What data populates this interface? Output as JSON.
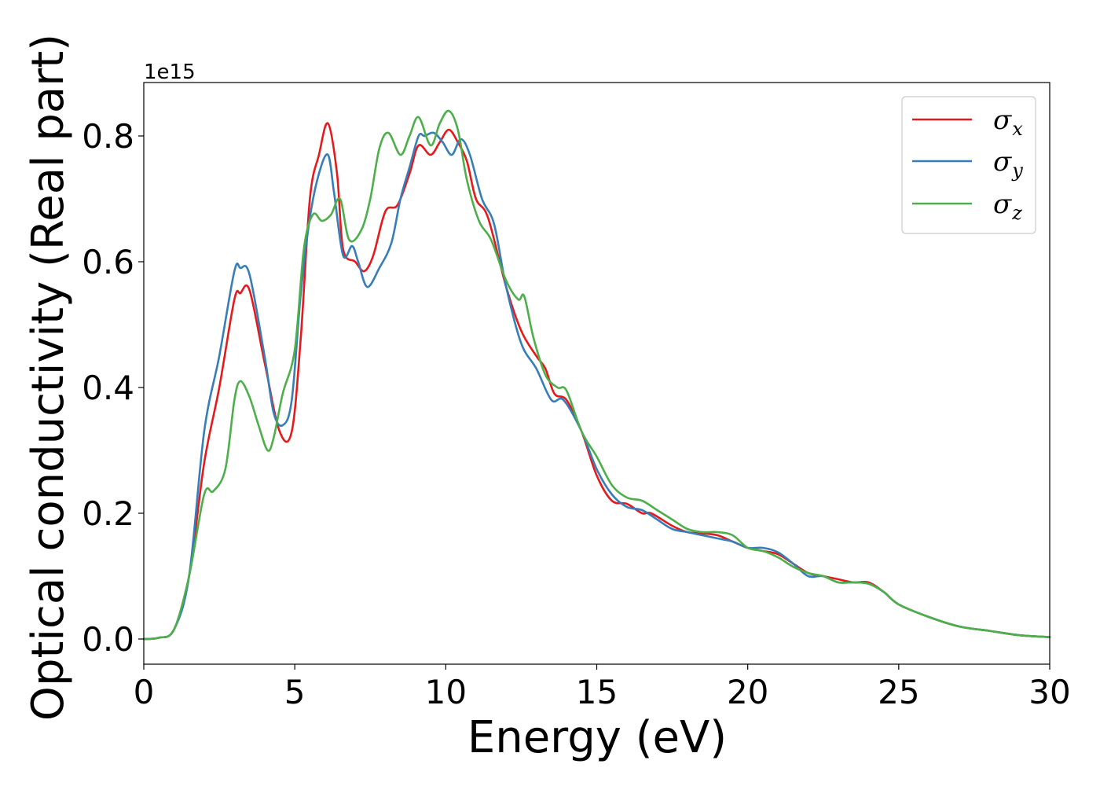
{
  "chart_data": {
    "type": "line",
    "xlabel": "Energy (eV)",
    "ylabel": "Optical conductivity (Real part)",
    "y_offset_label": "1e15",
    "xlim": [
      0,
      30
    ],
    "ylim": [
      -0.04,
      0.885
    ],
    "xticks": [
      0,
      5,
      10,
      15,
      20,
      25,
      30
    ],
    "xtick_labels": [
      "0",
      "5",
      "10",
      "15",
      "20",
      "25",
      "30"
    ],
    "yticks": [
      0.0,
      0.2,
      0.4,
      0.6,
      0.8
    ],
    "ytick_labels": [
      "0.0",
      "0.2",
      "0.4",
      "0.6",
      "0.8"
    ],
    "grid": false,
    "legend_position": "top-right",
    "series": [
      {
        "name": "σx",
        "symbol": "σ",
        "sub": "x",
        "color": "#e41a1c",
        "points": [
          [
            0,
            0
          ],
          [
            0.5,
            0.002
          ],
          [
            1.0,
            0.015
          ],
          [
            1.5,
            0.1
          ],
          [
            2.0,
            0.28
          ],
          [
            2.5,
            0.4
          ],
          [
            3.0,
            0.54
          ],
          [
            3.2,
            0.55
          ],
          [
            3.5,
            0.555
          ],
          [
            4.0,
            0.44
          ],
          [
            4.5,
            0.33
          ],
          [
            4.9,
            0.33
          ],
          [
            5.2,
            0.48
          ],
          [
            5.5,
            0.7
          ],
          [
            5.8,
            0.77
          ],
          [
            6.1,
            0.82
          ],
          [
            6.4,
            0.74
          ],
          [
            6.6,
            0.62
          ],
          [
            7.0,
            0.6
          ],
          [
            7.3,
            0.585
          ],
          [
            7.6,
            0.61
          ],
          [
            8.0,
            0.68
          ],
          [
            8.4,
            0.69
          ],
          [
            8.8,
            0.74
          ],
          [
            9.1,
            0.785
          ],
          [
            9.5,
            0.77
          ],
          [
            9.8,
            0.79
          ],
          [
            10.1,
            0.81
          ],
          [
            10.4,
            0.79
          ],
          [
            10.7,
            0.76
          ],
          [
            11.0,
            0.7
          ],
          [
            11.4,
            0.67
          ],
          [
            12.0,
            0.56
          ],
          [
            12.5,
            0.49
          ],
          [
            13.0,
            0.45
          ],
          [
            13.3,
            0.43
          ],
          [
            13.6,
            0.39
          ],
          [
            14.0,
            0.38
          ],
          [
            14.5,
            0.33
          ],
          [
            15.0,
            0.26
          ],
          [
            15.5,
            0.22
          ],
          [
            16.0,
            0.215
          ],
          [
            16.5,
            0.2
          ],
          [
            16.8,
            0.2
          ],
          [
            17.5,
            0.18
          ],
          [
            18.0,
            0.17
          ],
          [
            18.5,
            0.168
          ],
          [
            19.0,
            0.165
          ],
          [
            19.5,
            0.155
          ],
          [
            20.0,
            0.145
          ],
          [
            20.5,
            0.14
          ],
          [
            21.0,
            0.135
          ],
          [
            21.5,
            0.12
          ],
          [
            22.0,
            0.105
          ],
          [
            22.5,
            0.1
          ],
          [
            23.0,
            0.095
          ],
          [
            23.5,
            0.09
          ],
          [
            24.0,
            0.09
          ],
          [
            24.5,
            0.075
          ],
          [
            25.0,
            0.055
          ],
          [
            26.0,
            0.035
          ],
          [
            27.0,
            0.02
          ],
          [
            28.0,
            0.013
          ],
          [
            29.0,
            0.006
          ],
          [
            30.0,
            0.003
          ]
        ]
      },
      {
        "name": "σy",
        "symbol": "σ",
        "sub": "y",
        "color": "#377eb8",
        "points": [
          [
            0,
            0
          ],
          [
            0.5,
            0.002
          ],
          [
            1.0,
            0.015
          ],
          [
            1.5,
            0.1
          ],
          [
            2.0,
            0.33
          ],
          [
            2.5,
            0.45
          ],
          [
            3.0,
            0.585
          ],
          [
            3.2,
            0.59
          ],
          [
            3.5,
            0.58
          ],
          [
            4.0,
            0.45
          ],
          [
            4.3,
            0.36
          ],
          [
            4.6,
            0.34
          ],
          [
            4.9,
            0.38
          ],
          [
            5.2,
            0.55
          ],
          [
            5.5,
            0.67
          ],
          [
            5.8,
            0.74
          ],
          [
            6.1,
            0.77
          ],
          [
            6.3,
            0.71
          ],
          [
            6.6,
            0.61
          ],
          [
            6.9,
            0.625
          ],
          [
            7.1,
            0.6
          ],
          [
            7.4,
            0.56
          ],
          [
            7.8,
            0.59
          ],
          [
            8.2,
            0.63
          ],
          [
            8.5,
            0.7
          ],
          [
            8.8,
            0.75
          ],
          [
            9.1,
            0.8
          ],
          [
            9.3,
            0.8
          ],
          [
            9.6,
            0.805
          ],
          [
            9.9,
            0.79
          ],
          [
            10.2,
            0.77
          ],
          [
            10.5,
            0.795
          ],
          [
            10.8,
            0.77
          ],
          [
            11.2,
            0.7
          ],
          [
            11.6,
            0.66
          ],
          [
            12.0,
            0.56
          ],
          [
            12.5,
            0.47
          ],
          [
            13.0,
            0.43
          ],
          [
            13.5,
            0.38
          ],
          [
            13.9,
            0.38
          ],
          [
            14.5,
            0.33
          ],
          [
            15.0,
            0.27
          ],
          [
            15.5,
            0.23
          ],
          [
            16.0,
            0.21
          ],
          [
            16.5,
            0.205
          ],
          [
            17.0,
            0.19
          ],
          [
            17.5,
            0.175
          ],
          [
            18.0,
            0.17
          ],
          [
            18.5,
            0.165
          ],
          [
            19.0,
            0.16
          ],
          [
            19.5,
            0.155
          ],
          [
            20.0,
            0.145
          ],
          [
            20.5,
            0.145
          ],
          [
            21.0,
            0.138
          ],
          [
            21.5,
            0.12
          ],
          [
            22.0,
            0.1
          ],
          [
            22.5,
            0.1
          ],
          [
            23.0,
            0.09
          ],
          [
            23.5,
            0.09
          ],
          [
            24.0,
            0.088
          ],
          [
            24.5,
            0.075
          ],
          [
            25.0,
            0.055
          ],
          [
            26.0,
            0.035
          ],
          [
            27.0,
            0.02
          ],
          [
            28.0,
            0.013
          ],
          [
            29.0,
            0.006
          ],
          [
            30.0,
            0.003
          ]
        ]
      },
      {
        "name": "σz",
        "symbol": "σ",
        "sub": "z",
        "color": "#4daf4a",
        "points": [
          [
            0,
            0
          ],
          [
            0.5,
            0.002
          ],
          [
            1.0,
            0.015
          ],
          [
            1.5,
            0.1
          ],
          [
            2.0,
            0.23
          ],
          [
            2.3,
            0.235
          ],
          [
            2.7,
            0.27
          ],
          [
            3.0,
            0.38
          ],
          [
            3.2,
            0.41
          ],
          [
            3.5,
            0.385
          ],
          [
            3.8,
            0.34
          ],
          [
            4.1,
            0.3
          ],
          [
            4.3,
            0.32
          ],
          [
            4.6,
            0.39
          ],
          [
            5.0,
            0.46
          ],
          [
            5.3,
            0.62
          ],
          [
            5.6,
            0.675
          ],
          [
            5.9,
            0.665
          ],
          [
            6.2,
            0.675
          ],
          [
            6.5,
            0.7
          ],
          [
            6.8,
            0.635
          ],
          [
            7.2,
            0.65
          ],
          [
            7.5,
            0.7
          ],
          [
            7.8,
            0.78
          ],
          [
            8.1,
            0.805
          ],
          [
            8.5,
            0.77
          ],
          [
            8.8,
            0.8
          ],
          [
            9.1,
            0.83
          ],
          [
            9.5,
            0.785
          ],
          [
            9.8,
            0.82
          ],
          [
            10.1,
            0.84
          ],
          [
            10.4,
            0.81
          ],
          [
            10.7,
            0.73
          ],
          [
            11.1,
            0.665
          ],
          [
            11.5,
            0.635
          ],
          [
            12.0,
            0.57
          ],
          [
            12.4,
            0.54
          ],
          [
            12.6,
            0.545
          ],
          [
            12.9,
            0.48
          ],
          [
            13.3,
            0.42
          ],
          [
            13.7,
            0.4
          ],
          [
            14.0,
            0.395
          ],
          [
            14.5,
            0.33
          ],
          [
            15.0,
            0.29
          ],
          [
            15.5,
            0.245
          ],
          [
            16.0,
            0.225
          ],
          [
            16.5,
            0.22
          ],
          [
            17.0,
            0.205
          ],
          [
            17.5,
            0.19
          ],
          [
            18.0,
            0.175
          ],
          [
            18.5,
            0.17
          ],
          [
            19.0,
            0.17
          ],
          [
            19.5,
            0.165
          ],
          [
            20.0,
            0.145
          ],
          [
            20.5,
            0.14
          ],
          [
            21.0,
            0.13
          ],
          [
            21.5,
            0.115
          ],
          [
            22.0,
            0.105
          ],
          [
            22.5,
            0.1
          ],
          [
            23.0,
            0.09
          ],
          [
            23.5,
            0.09
          ],
          [
            24.0,
            0.088
          ],
          [
            24.5,
            0.075
          ],
          [
            25.0,
            0.055
          ],
          [
            26.0,
            0.035
          ],
          [
            27.0,
            0.02
          ],
          [
            28.0,
            0.013
          ],
          [
            29.0,
            0.006
          ],
          [
            30.0,
            0.003
          ]
        ]
      }
    ]
  }
}
